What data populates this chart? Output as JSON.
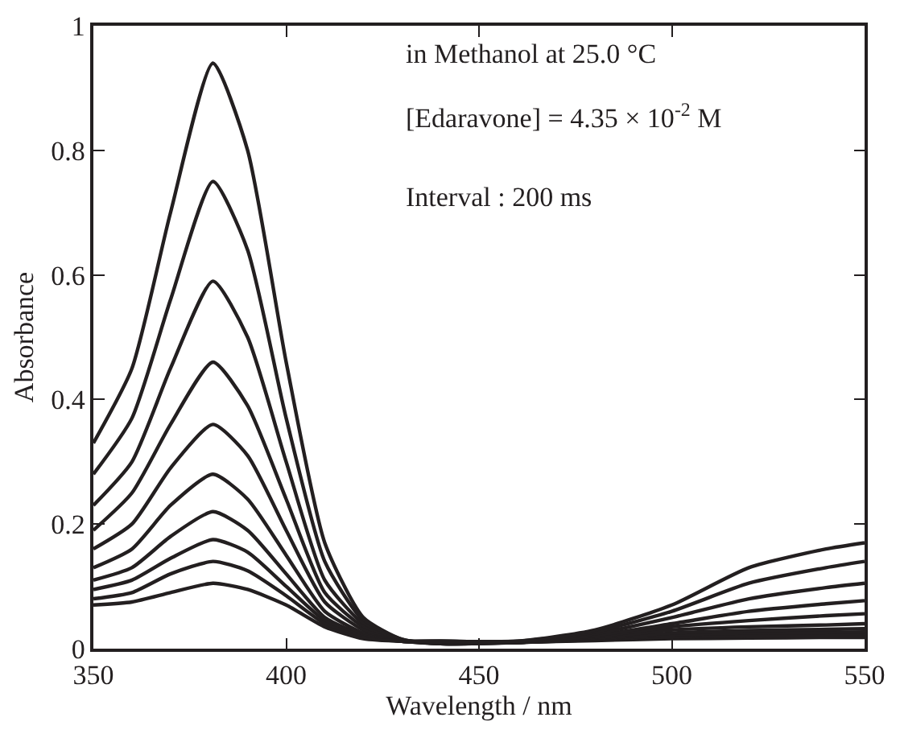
{
  "chart_data": {
    "type": "line",
    "xlabel": "Wavelength / nm",
    "ylabel": "Absorbance",
    "annotations": [
      "in Methanol at 25.0 °C",
      "[Edaravone] = 4.35 × 10$^{-2}$ M",
      "Interval : 200 ms"
    ],
    "x": [
      350,
      360,
      370,
      381,
      390,
      400,
      410,
      420,
      430,
      440,
      460,
      480,
      500,
      520,
      540,
      550
    ],
    "series": [
      {
        "color": "#231f20",
        "values": [
          0.33,
          0.45,
          0.7,
          0.94,
          0.8,
          0.46,
          0.17,
          0.05,
          0.015,
          0.008,
          0.01,
          0.013,
          0.016,
          0.017,
          0.018,
          0.018
        ]
      },
      {
        "color": "#231f20",
        "values": [
          0.28,
          0.37,
          0.56,
          0.75,
          0.64,
          0.37,
          0.14,
          0.045,
          0.015,
          0.008,
          0.01,
          0.014,
          0.019,
          0.021,
          0.022,
          0.022
        ]
      },
      {
        "color": "#231f20",
        "values": [
          0.23,
          0.3,
          0.45,
          0.59,
          0.5,
          0.3,
          0.11,
          0.04,
          0.014,
          0.008,
          0.01,
          0.015,
          0.022,
          0.025,
          0.026,
          0.027
        ]
      },
      {
        "color": "#231f20",
        "values": [
          0.19,
          0.25,
          0.36,
          0.46,
          0.39,
          0.24,
          0.09,
          0.035,
          0.013,
          0.008,
          0.01,
          0.016,
          0.025,
          0.029,
          0.031,
          0.032
        ]
      },
      {
        "color": "#231f20",
        "values": [
          0.16,
          0.2,
          0.29,
          0.36,
          0.31,
          0.19,
          0.075,
          0.03,
          0.012,
          0.009,
          0.01,
          0.017,
          0.03,
          0.035,
          0.038,
          0.04
        ]
      },
      {
        "color": "#231f20",
        "values": [
          0.13,
          0.16,
          0.23,
          0.28,
          0.24,
          0.15,
          0.06,
          0.025,
          0.012,
          0.01,
          0.01,
          0.019,
          0.035,
          0.045,
          0.053,
          0.056
        ]
      },
      {
        "color": "#231f20",
        "values": [
          0.11,
          0.13,
          0.18,
          0.22,
          0.19,
          0.12,
          0.05,
          0.022,
          0.012,
          0.011,
          0.01,
          0.021,
          0.04,
          0.06,
          0.072,
          0.077
        ]
      },
      {
        "color": "#231f20",
        "values": [
          0.095,
          0.11,
          0.145,
          0.175,
          0.155,
          0.1,
          0.045,
          0.02,
          0.012,
          0.012,
          0.011,
          0.024,
          0.05,
          0.08,
          0.098,
          0.105
        ]
      },
      {
        "color": "#231f20",
        "values": [
          0.08,
          0.09,
          0.12,
          0.14,
          0.125,
          0.085,
          0.04,
          0.018,
          0.012,
          0.012,
          0.012,
          0.027,
          0.06,
          0.105,
          0.13,
          0.14
        ]
      },
      {
        "color": "#231f20",
        "values": [
          0.07,
          0.075,
          0.09,
          0.105,
          0.095,
          0.07,
          0.035,
          0.016,
          0.012,
          0.012,
          0.012,
          0.03,
          0.07,
          0.13,
          0.16,
          0.17
        ]
      }
    ],
    "xlim": [
      350,
      550
    ],
    "xticks": [
      350,
      400,
      450,
      500,
      550
    ],
    "ylim": [
      0,
      1
    ],
    "yticks": [
      0,
      0.2,
      0.4,
      0.6,
      0.8,
      1
    ]
  }
}
